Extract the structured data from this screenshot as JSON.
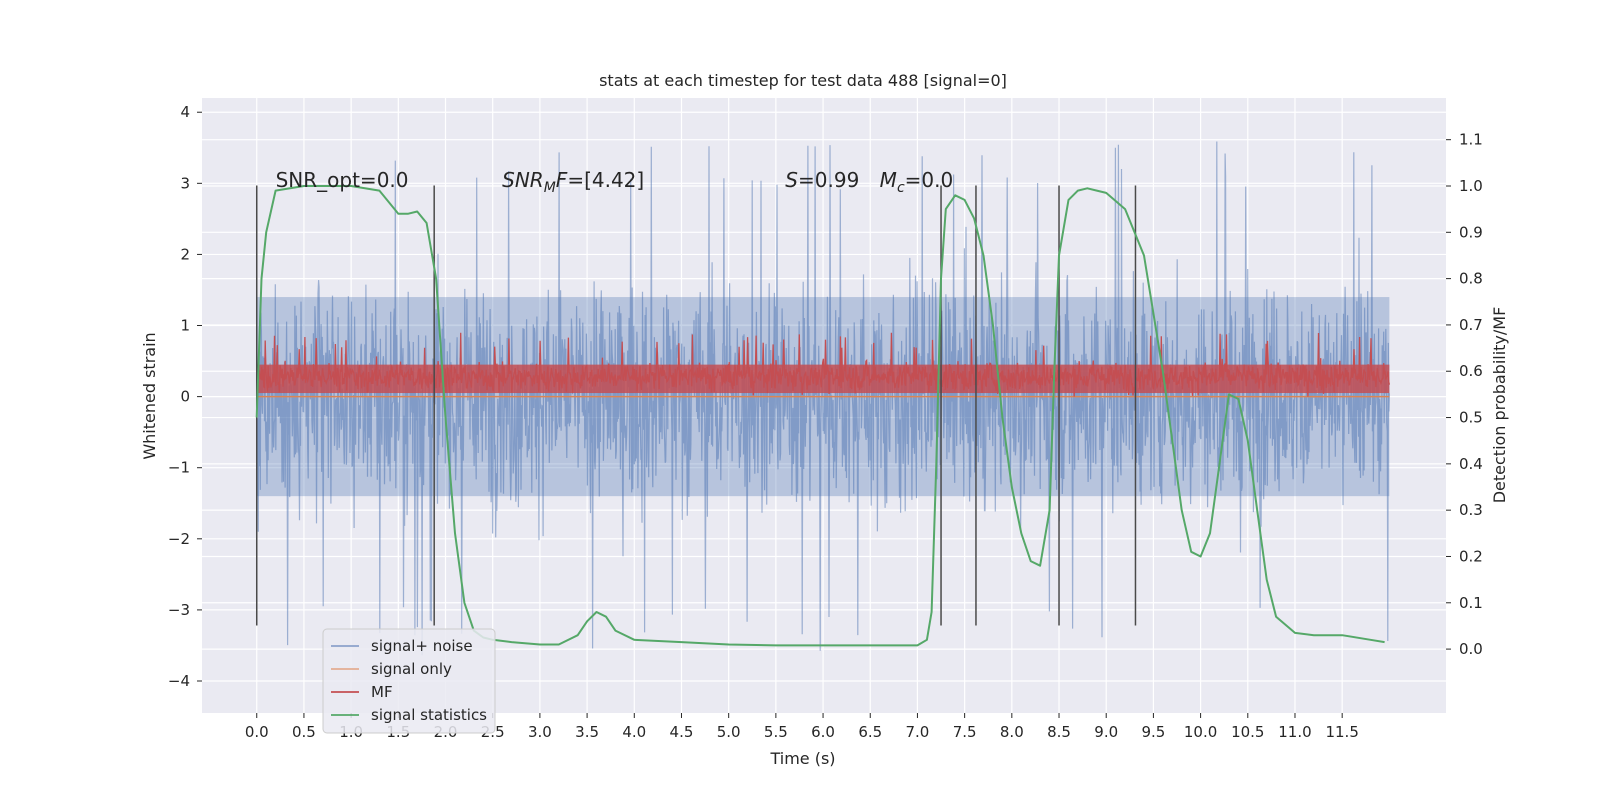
{
  "chart_data": {
    "type": "line",
    "title": "stats at each timestep for test data 488 [signal=0]",
    "xlabel": "Time (s)",
    "ylabel": "Whitened strain",
    "y2label": "Detection probability/MF",
    "xlim": [
      -0.58,
      12.6
    ],
    "ylim": [
      -4.45,
      4.2
    ],
    "y2lim": [
      -0.138,
      1.19
    ],
    "x_ticks": [
      0.0,
      0.5,
      1.0,
      1.5,
      2.0,
      2.5,
      3.0,
      3.5,
      4.0,
      4.5,
      5.0,
      5.5,
      6.0,
      6.5,
      7.0,
      7.5,
      8.0,
      8.5,
      9.0,
      9.5,
      10.0,
      10.5,
      11.0,
      11.5
    ],
    "x_tick_labels": [
      "0.0",
      "0.5",
      "1.0",
      "1.5",
      "2.0",
      "2.5",
      "3.0",
      "3.5",
      "4.0",
      "4.5",
      "5.0",
      "5.5",
      "6.0",
      "6.5",
      "7.0",
      "7.5",
      "8.0",
      "8.5",
      "9.0",
      "9.5",
      "10.0",
      "10.5",
      "11.0",
      "11.5"
    ],
    "y_ticks": [
      4,
      3,
      2,
      1,
      0,
      -1,
      -2,
      -3,
      -4
    ],
    "y_tick_labels": [
      "4",
      "3",
      "2",
      "1",
      "0",
      "−1",
      "−2",
      "−3",
      "−4"
    ],
    "y2_ticks": [
      1.1,
      1.0,
      0.9,
      0.8,
      0.7,
      0.6,
      0.5,
      0.4,
      0.3,
      0.2,
      0.1,
      0.0
    ],
    "y2_tick_labels": [
      "1.1",
      "1.0",
      "0.9",
      "0.8",
      "0.7",
      "0.6",
      "0.5",
      "0.4",
      "0.3",
      "0.2",
      "0.1",
      "0.0"
    ],
    "grid": true,
    "legend_position": "lower-left",
    "series": [
      {
        "name": "signal+ noise",
        "color": "#4c72b0",
        "axis": "left",
        "style": "dense noise trace, roughly uniform across 0.0–12.0 s, mostly within −2.8 to 2.8 with spikes to about ±3.6",
        "x_range": [
          0.0,
          12.0
        ],
        "envelope": [
          -2.8,
          2.8
        ],
        "extremes": [
          -4.1,
          3.65
        ]
      },
      {
        "name": "signal only",
        "color": "#dd8452",
        "axis": "left",
        "x": [
          0.0,
          12.0
        ],
        "values": [
          0.0,
          0.0
        ]
      },
      {
        "name": "MF",
        "color": "#c44e52",
        "axis": "left",
        "style": "dense trace between about 0.0 and 0.9",
        "x_range": [
          0.0,
          12.0
        ],
        "envelope": [
          0.0,
          0.9
        ]
      },
      {
        "name": "signal statistics",
        "color": "#55a868",
        "axis": "right",
        "x": [
          0.0,
          0.05,
          0.1,
          0.2,
          0.5,
          1.0,
          1.3,
          1.5,
          1.6,
          1.7,
          1.8,
          1.9,
          2.0,
          2.1,
          2.2,
          2.3,
          2.4,
          2.5,
          2.7,
          3.0,
          3.2,
          3.4,
          3.5,
          3.6,
          3.7,
          3.8,
          4.0,
          4.5,
          5.0,
          5.5,
          6.0,
          6.5,
          7.0,
          7.1,
          7.15,
          7.2,
          7.25,
          7.3,
          7.4,
          7.5,
          7.6,
          7.7,
          7.8,
          7.9,
          8.0,
          8.1,
          8.2,
          8.3,
          8.4,
          8.45,
          8.5,
          8.6,
          8.7,
          8.8,
          8.9,
          9.0,
          9.2,
          9.4,
          9.6,
          9.7,
          9.8,
          9.9,
          10.0,
          10.1,
          10.2,
          10.3,
          10.4,
          10.5,
          10.6,
          10.7,
          10.8,
          11.0,
          11.2,
          11.5,
          11.8,
          11.95
        ],
        "values": [
          0.5,
          0.8,
          0.9,
          0.99,
          1.0,
          1.0,
          0.99,
          0.94,
          0.94,
          0.945,
          0.92,
          0.8,
          0.5,
          0.25,
          0.1,
          0.04,
          0.025,
          0.02,
          0.015,
          0.01,
          0.01,
          0.03,
          0.06,
          0.08,
          0.07,
          0.04,
          0.02,
          0.015,
          0.01,
          0.008,
          0.008,
          0.008,
          0.008,
          0.02,
          0.08,
          0.4,
          0.8,
          0.95,
          0.98,
          0.97,
          0.93,
          0.85,
          0.7,
          0.5,
          0.35,
          0.25,
          0.19,
          0.18,
          0.3,
          0.6,
          0.85,
          0.97,
          0.99,
          0.995,
          0.99,
          0.985,
          0.95,
          0.85,
          0.6,
          0.45,
          0.3,
          0.21,
          0.2,
          0.25,
          0.4,
          0.55,
          0.54,
          0.45,
          0.3,
          0.15,
          0.07,
          0.035,
          0.03,
          0.03,
          0.02,
          0.015
        ]
      }
    ],
    "vertical_markers": [
      {
        "x": 0.0,
        "y_range": [
          -3.22,
          2.97
        ]
      },
      {
        "x": 1.88,
        "y_range": [
          -3.22,
          2.97
        ]
      },
      {
        "x": 7.25,
        "y_range": [
          -3.22,
          2.97
        ]
      },
      {
        "x": 7.62,
        "y_range": [
          -3.22,
          2.97
        ]
      },
      {
        "x": 8.5,
        "y_range": [
          -3.22,
          2.97
        ]
      },
      {
        "x": 9.31,
        "y_range": [
          -3.22,
          2.97
        ]
      }
    ],
    "annotations": [
      {
        "id": "snr-opt",
        "text": "SNR_opt=0.0",
        "x": 0.2,
        "y": 2.95
      },
      {
        "id": "snr-mf",
        "text": "SNR",
        "sub": "M",
        "tail": "F=[4.42]",
        "italic": true,
        "x": 2.6,
        "y": 2.95
      },
      {
        "id": "s-stat",
        "text": "S",
        "tail": "=0.99",
        "italic": true,
        "x": 5.6,
        "y": 2.95
      },
      {
        "id": "mc",
        "text": "M",
        "sub": "c",
        "tail": "=0.0",
        "italic": true,
        "x": 6.6,
        "y": 2.95
      }
    ]
  }
}
